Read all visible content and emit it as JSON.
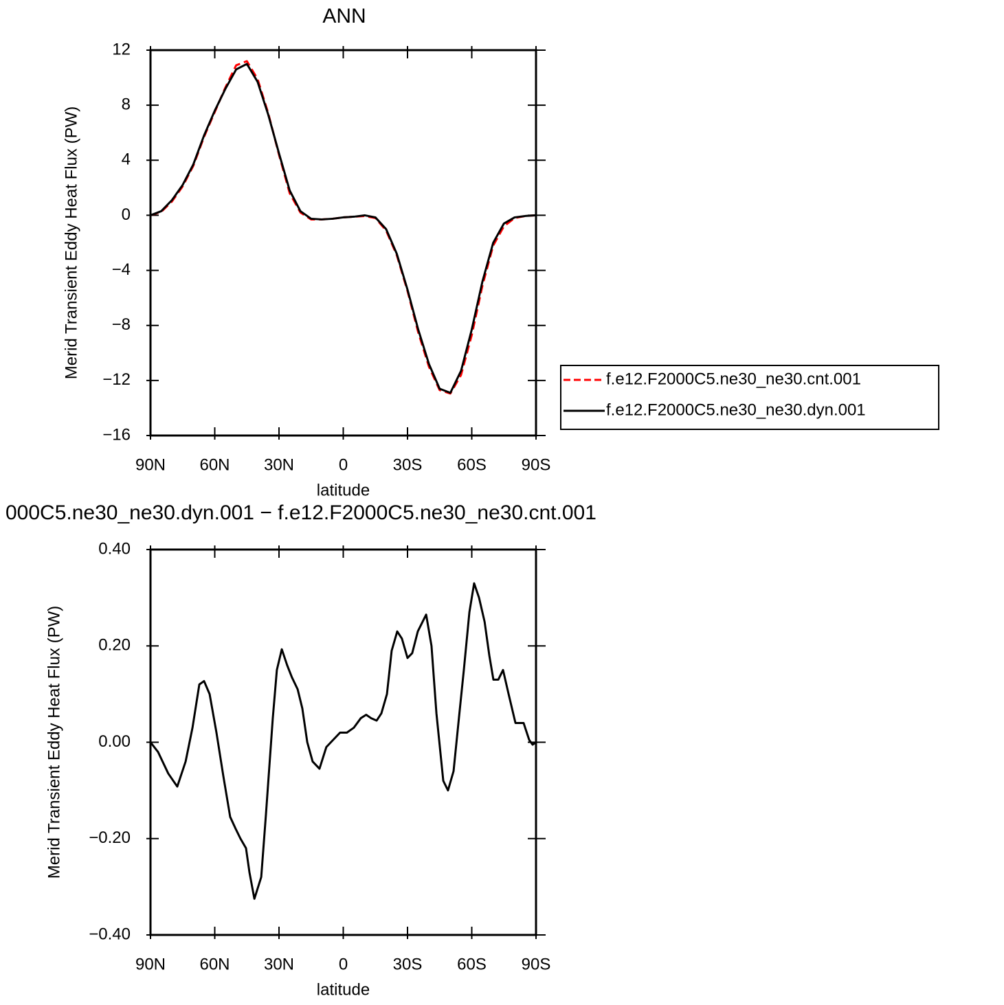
{
  "chart_data": [
    {
      "type": "line",
      "title": "ANN",
      "x_label": "latitude",
      "y_label": "Merid Transient Eddy Heat Flux (PW)",
      "x": [
        90,
        85,
        80,
        75,
        70,
        65,
        60,
        55,
        50,
        45,
        40,
        35,
        30,
        25,
        20,
        15,
        10,
        5,
        0,
        -5,
        -10,
        -15,
        -20,
        -25,
        -30,
        -35,
        -40,
        -45,
        -50,
        -55,
        -60,
        -65,
        -70,
        -75,
        -80,
        -85,
        -90
      ],
      "series": [
        {
          "name": "f.e12.F2000C5.ne30_ne30.cnt.001",
          "color": "#ff0000",
          "dashed": true,
          "values": [
            0,
            0.25,
            1.0,
            2.1,
            3.6,
            5.7,
            7.5,
            9.3,
            10.9,
            11.2,
            9.9,
            7.4,
            4.4,
            1.6,
            0.2,
            -0.3,
            -0.3,
            -0.25,
            -0.15,
            -0.1,
            -0.05,
            -0.2,
            -1.1,
            -2.9,
            -5.5,
            -8.5,
            -11.0,
            -12.7,
            -12.95,
            -11.6,
            -8.7,
            -5.1,
            -2.2,
            -0.8,
            -0.2,
            -0.05,
            0
          ]
        },
        {
          "name": "f.e12.F2000C5.ne30_ne30.dyn.001",
          "color": "#000000",
          "dashed": false,
          "values": [
            0,
            0.3,
            1.1,
            2.2,
            3.7,
            5.8,
            7.6,
            9.2,
            10.6,
            11.0,
            9.7,
            7.3,
            4.5,
            1.8,
            0.3,
            -0.25,
            -0.3,
            -0.25,
            -0.15,
            -0.1,
            0.0,
            -0.15,
            -1.0,
            -2.8,
            -5.4,
            -8.3,
            -10.8,
            -12.6,
            -12.9,
            -11.3,
            -8.3,
            -4.8,
            -2.0,
            -0.6,
            -0.15,
            -0.05,
            0
          ]
        }
      ],
      "xlim": [
        90,
        -90
      ],
      "xticks": [
        {
          "value": 90,
          "label": "90N"
        },
        {
          "value": 60,
          "label": "60N"
        },
        {
          "value": 30,
          "label": "30N"
        },
        0,
        {
          "value": -30,
          "label": "30S"
        },
        {
          "value": -60,
          "label": "60S"
        },
        {
          "value": -90,
          "label": "90S"
        }
      ],
      "ylim": [
        -16,
        12
      ],
      "yticks": [
        12,
        8,
        4,
        0,
        {
          "value": -4,
          "label": "−4"
        },
        {
          "value": -8,
          "label": "−8"
        },
        {
          "value": -12,
          "label": "−12"
        },
        {
          "value": -16,
          "label": "−16"
        }
      ],
      "legend": "right"
    },
    {
      "type": "line",
      "title": "000C5.ne30_ne30.dyn.001 − f.e12.F2000C5.ne30_ne30.cnt.001",
      "x_label": "latitude",
      "y_label": "Merid Transient Eddy Heat Flux (PW)",
      "x": [
        90,
        86.5,
        81.7,
        77.5,
        73.6,
        70.4,
        67.2,
        65,
        62.4,
        59.2,
        56,
        52.8,
        50.2,
        48,
        45.4,
        43.8,
        41.5,
        38.3,
        36.1,
        32.9,
        31,
        28.7,
        26.2,
        24,
        21.3,
        19.1,
        16.8,
        14.3,
        11.1,
        7.9,
        4.7,
        1.5,
        -1.7,
        -4.9,
        -8.2,
        -10.7,
        -13,
        -15.6,
        -17.8,
        -20.4,
        -22.6,
        -25.2,
        -27.4,
        -30,
        -32.2,
        -34.8,
        -38.7,
        -41.2,
        -43.5,
        -46.7,
        -48.9,
        -51.5,
        -54,
        -56.3,
        -58.9,
        -61.1,
        -63.4,
        -66,
        -68.2,
        -70.1,
        -72.4,
        -74.6,
        -77.2,
        -80.4,
        -82.6,
        -84.2,
        -86.8,
        -88.4,
        -90
      ],
      "series": [
        {
          "color": "#000000",
          "dashed": false,
          "values": [
            0,
            -0.02,
            -0.065,
            -0.092,
            -0.04,
            0.03,
            0.12,
            0.127,
            0.1,
            0.02,
            -0.07,
            -0.155,
            -0.18,
            -0.2,
            -0.22,
            -0.27,
            -0.325,
            -0.28,
            -0.15,
            0.05,
            0.15,
            0.193,
            0.16,
            0.135,
            0.11,
            0.07,
            0.0,
            -0.04,
            -0.055,
            -0.01,
            0.005,
            0.02,
            0.02,
            0.03,
            0.05,
            0.057,
            0.05,
            0.045,
            0.06,
            0.1,
            0.19,
            0.23,
            0.215,
            0.175,
            0.185,
            0.23,
            0.265,
            0.2,
            0.06,
            -0.08,
            -0.1,
            -0.06,
            0.05,
            0.15,
            0.27,
            0.33,
            0.3,
            0.25,
            0.18,
            0.13,
            0.13,
            0.15,
            0.1,
            0.04,
            0.04,
            0.04,
            0.005,
            -0.005,
            0.0
          ]
        }
      ],
      "xlim": [
        90,
        -90
      ],
      "xticks": [
        {
          "value": 90,
          "label": "90N"
        },
        {
          "value": 60,
          "label": "60N"
        },
        {
          "value": 30,
          "label": "30N"
        },
        0,
        {
          "value": -30,
          "label": "30S"
        },
        {
          "value": -60,
          "label": "60S"
        },
        {
          "value": -90,
          "label": "90S"
        }
      ],
      "ylim": [
        -0.4,
        0.4
      ],
      "yticks": [
        {
          "value": 0.4,
          "label": "0.40"
        },
        {
          "value": 0.2,
          "label": "0.20"
        },
        {
          "value": 0,
          "label": "0.00"
        },
        {
          "value": -0.2,
          "label": "−0.20"
        },
        {
          "value": -0.4,
          "label": "−0.40"
        }
      ]
    }
  ]
}
